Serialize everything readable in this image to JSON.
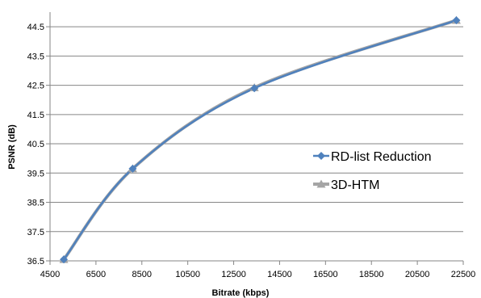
{
  "chart_data": {
    "type": "line",
    "xlabel": "Bitrate (kbps)",
    "ylabel": "PSNR (dB)",
    "xlim": [
      4500,
      22500
    ],
    "ylim": [
      36.5,
      45.0
    ],
    "x_ticks": [
      "4500",
      "6500",
      "8500",
      "10500",
      "12500",
      "14500",
      "16500",
      "18500",
      "20500",
      "22500"
    ],
    "y_ticks": [
      "36.5",
      "37.5",
      "38.5",
      "39.5",
      "40.5",
      "41.5",
      "42.5",
      "43.5",
      "44.5"
    ],
    "grid": "horizontal",
    "legend_position": "right",
    "series": [
      {
        "name": "RD-list Reduction",
        "color": "#4f81bd",
        "marker": "diamond",
        "x": [
          5100,
          8100,
          13400,
          22200
        ],
        "y": [
          36.55,
          39.65,
          42.4,
          44.72
        ]
      },
      {
        "name": "3D-HTM",
        "color": "#a5a5a5",
        "marker": "triangle",
        "x": [
          5100,
          8100,
          13400,
          22200
        ],
        "y": [
          36.55,
          39.65,
          42.42,
          44.72
        ]
      }
    ]
  }
}
